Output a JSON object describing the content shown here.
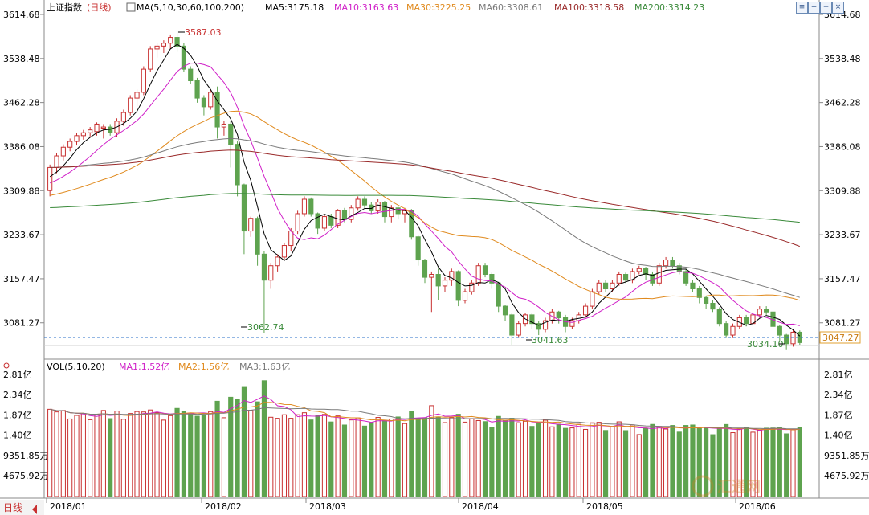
{
  "main_header": {
    "index_name": "上证指数",
    "period": "(日线)",
    "ma_spec": "MA(5,10,30,60,100,200)",
    "ma5": "MA5:3175.18",
    "ma10": "MA10:3163.63",
    "ma30": "MA30:3225.25",
    "ma60": "MA60:3308.61",
    "ma100": "MA100:3318.58",
    "ma200": "MA200:3314.23"
  },
  "vol_header": {
    "spec": "VOL(5,10,20)",
    "ma1": "MA1:1.52亿",
    "ma2": "MA2:1.56亿",
    "ma3": "MA3:1.63亿"
  },
  "buttons": {
    "b1": "≡",
    "b2": "+",
    "b3": "−",
    "b4": "×"
  },
  "annotations": {
    "high": "3587.03",
    "low1": "3062.74",
    "low2": "3041.63",
    "low3": "3034.10",
    "last_price": "3047.27"
  },
  "bottom_label": "日线",
  "watermark": "汇通网",
  "colors": {
    "up": "#c83030",
    "down": "#5ea34f",
    "ma5": "#000000",
    "ma10": "#d020c8",
    "ma30": "#e08a1e",
    "ma60": "#7a7a7a",
    "ma100": "#9a2a2a",
    "ma200": "#3a8a3a"
  },
  "chart_data": [
    {
      "type": "candlestick",
      "title": "上证指数(日线)",
      "y_ticks": [
        "3614.68",
        "3538.48",
        "3462.28",
        "3386.08",
        "3309.88",
        "3233.67",
        "3157.47",
        "3081.27"
      ],
      "ylim": [
        3042,
        3614.68
      ],
      "x_ticks": [
        "2018/01",
        "2018/02",
        "2018/03",
        "2018/04",
        "2018/05",
        "2018/06"
      ],
      "candles": [
        [
          3310,
          3350,
          3300,
          3355
        ],
        [
          3350,
          3370,
          3340,
          3375
        ],
        [
          3370,
          3385,
          3362,
          3390
        ],
        [
          3385,
          3395,
          3378,
          3400
        ],
        [
          3395,
          3405,
          3388,
          3410
        ],
        [
          3405,
          3410,
          3398,
          3415
        ],
        [
          3410,
          3415,
          3402,
          3420
        ],
        [
          3412,
          3425,
          3405,
          3428
        ],
        [
          3418,
          3420,
          3400,
          3425
        ],
        [
          3420,
          3410,
          3405,
          3425
        ],
        [
          3410,
          3430,
          3402,
          3435
        ],
        [
          3430,
          3445,
          3422,
          3450
        ],
        [
          3445,
          3470,
          3440,
          3475
        ],
        [
          3470,
          3480,
          3455,
          3485
        ],
        [
          3480,
          3520,
          3475,
          3525
        ],
        [
          3520,
          3555,
          3515,
          3560
        ],
        [
          3555,
          3560,
          3540,
          3565
        ],
        [
          3560,
          3565,
          3548,
          3570
        ],
        [
          3565,
          3575,
          3555,
          3580
        ],
        [
          3575,
          3560,
          3550,
          3587
        ],
        [
          3560,
          3520,
          3515,
          3565
        ],
        [
          3520,
          3500,
          3495,
          3525
        ],
        [
          3500,
          3470,
          3462,
          3505
        ],
        [
          3470,
          3455,
          3440,
          3475
        ],
        [
          3455,
          3480,
          3450,
          3485
        ],
        [
          3480,
          3420,
          3400,
          3490
        ],
        [
          3420,
          3425,
          3405,
          3430
        ],
        [
          3425,
          3390,
          3350,
          3430
        ],
        [
          3390,
          3320,
          3300,
          3395
        ],
        [
          3320,
          3240,
          3200,
          3322
        ],
        [
          3240,
          3262,
          3230,
          3265
        ],
        [
          3262,
          3200,
          3180,
          3265
        ],
        [
          3200,
          3155,
          3063,
          3205
        ],
        [
          3155,
          3180,
          3140,
          3185
        ],
        [
          3180,
          3195,
          3170,
          3200
        ],
        [
          3195,
          3215,
          3190,
          3220
        ],
        [
          3215,
          3240,
          3205,
          3245
        ],
        [
          3240,
          3270,
          3235,
          3275
        ],
        [
          3270,
          3295,
          3265,
          3300
        ],
        [
          3295,
          3270,
          3265,
          3298
        ],
        [
          3270,
          3245,
          3235,
          3272
        ],
        [
          3245,
          3265,
          3240,
          3268
        ],
        [
          3265,
          3250,
          3245,
          3270
        ],
        [
          3250,
          3275,
          3245,
          3278
        ],
        [
          3275,
          3260,
          3255,
          3280
        ],
        [
          3260,
          3280,
          3255,
          3285
        ],
        [
          3280,
          3295,
          3275,
          3300
        ],
        [
          3295,
          3285,
          3280,
          3300
        ],
        [
          3285,
          3275,
          3270,
          3290
        ],
        [
          3275,
          3290,
          3270,
          3295
        ],
        [
          3290,
          3265,
          3255,
          3292
        ],
        [
          3265,
          3280,
          3255,
          3285
        ],
        [
          3280,
          3270,
          3260,
          3285
        ],
        [
          3270,
          3275,
          3255,
          3280
        ],
        [
          3275,
          3230,
          3225,
          3278
        ],
        [
          3230,
          3190,
          3180,
          3232
        ],
        [
          3190,
          3160,
          3150,
          3192
        ],
        [
          3160,
          3165,
          3100,
          3170
        ],
        [
          3165,
          3145,
          3120,
          3175
        ],
        [
          3145,
          3155,
          3135,
          3160
        ],
        [
          3155,
          3170,
          3145,
          3175
        ],
        [
          3170,
          3120,
          3110,
          3172
        ],
        [
          3120,
          3135,
          3115,
          3140
        ],
        [
          3135,
          3150,
          3130,
          3155
        ],
        [
          3150,
          3180,
          3145,
          3185
        ],
        [
          3180,
          3165,
          3160,
          3185
        ],
        [
          3165,
          3150,
          3140,
          3168
        ],
        [
          3150,
          3110,
          3100,
          3152
        ],
        [
          3110,
          3095,
          3085,
          3112
        ],
        [
          3095,
          3060,
          3042,
          3098
        ],
        [
          3060,
          3080,
          3055,
          3085
        ],
        [
          3080,
          3095,
          3075,
          3098
        ],
        [
          3095,
          3080,
          3070,
          3098
        ],
        [
          3080,
          3070,
          3060,
          3085
        ],
        [
          3070,
          3085,
          3065,
          3090
        ],
        [
          3085,
          3100,
          3080,
          3105
        ],
        [
          3100,
          3090,
          3080,
          3102
        ],
        [
          3090,
          3075,
          3065,
          3095
        ],
        [
          3075,
          3085,
          3070,
          3090
        ],
        [
          3085,
          3095,
          3080,
          3100
        ],
        [
          3095,
          3110,
          3090,
          3115
        ],
        [
          3110,
          3135,
          3105,
          3140
        ],
        [
          3135,
          3150,
          3130,
          3155
        ],
        [
          3150,
          3140,
          3135,
          3155
        ],
        [
          3140,
          3150,
          3135,
          3155
        ],
        [
          3150,
          3165,
          3145,
          3170
        ],
        [
          3165,
          3155,
          3150,
          3168
        ],
        [
          3155,
          3170,
          3150,
          3175
        ],
        [
          3170,
          3175,
          3165,
          3180
        ],
        [
          3175,
          3165,
          3155,
          3178
        ],
        [
          3165,
          3150,
          3145,
          3170
        ],
        [
          3150,
          3180,
          3145,
          3185
        ],
        [
          3180,
          3190,
          3175,
          3195
        ],
        [
          3190,
          3180,
          3175,
          3195
        ],
        [
          3180,
          3170,
          3165,
          3185
        ],
        [
          3170,
          3150,
          3145,
          3175
        ],
        [
          3150,
          3140,
          3135,
          3155
        ],
        [
          3140,
          3125,
          3115,
          3145
        ],
        [
          3125,
          3115,
          3105,
          3128
        ],
        [
          3115,
          3105,
          3100,
          3120
        ],
        [
          3105,
          3080,
          3075,
          3108
        ],
        [
          3080,
          3060,
          3055,
          3085
        ],
        [
          3060,
          3075,
          3055,
          3080
        ],
        [
          3075,
          3090,
          3070,
          3095
        ],
        [
          3090,
          3080,
          3075,
          3095
        ],
        [
          3080,
          3095,
          3075,
          3100
        ],
        [
          3095,
          3105,
          3090,
          3110
        ],
        [
          3105,
          3100,
          3095,
          3110
        ],
        [
          3100,
          3075,
          3065,
          3102
        ],
        [
          3075,
          3060,
          3050,
          3078
        ],
        [
          3060,
          3045,
          3034,
          3062
        ],
        [
          3045,
          3065,
          3040,
          3070
        ],
        [
          3065,
          3047,
          3042,
          3068
        ]
      ],
      "ma_labels": [
        "MA5",
        "MA10",
        "MA30",
        "MA60",
        "MA100",
        "MA200"
      ]
    },
    {
      "type": "bar",
      "title": "VOL(5,10,20)",
      "y_ticks": [
        "2.81亿",
        "2.34亿",
        "1.87亿",
        "1.40亿",
        "9351.85万",
        "4675.92万"
      ]
    }
  ]
}
